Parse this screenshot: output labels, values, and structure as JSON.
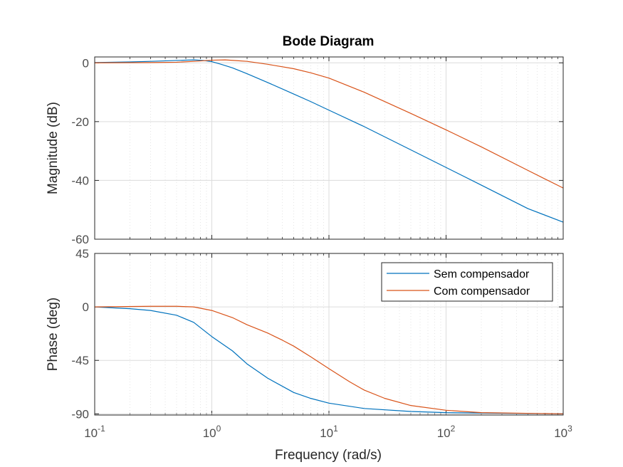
{
  "chart_data": {
    "type": "line",
    "title": "Bode Diagram",
    "xlabel": "Frequency  (rad/s)",
    "x_scale": "log",
    "xlim": [
      0.1,
      1000
    ],
    "x_ticks": [
      {
        "value": 0.1,
        "base": "10",
        "exp": "-1"
      },
      {
        "value": 1,
        "base": "10",
        "exp": "0"
      },
      {
        "value": 10,
        "base": "10",
        "exp": "1"
      },
      {
        "value": 100,
        "base": "10",
        "exp": "2"
      },
      {
        "value": 1000,
        "base": "10",
        "exp": "3"
      }
    ],
    "grid": true,
    "colors": {
      "sem": "#0072bd",
      "com": "#d95319"
    },
    "legend": {
      "location": "top-right of phase panel",
      "entries": [
        "Sem compensador",
        "Com compensador"
      ]
    },
    "panels": [
      {
        "id": "magnitude",
        "ylabel": "Magnitude (dB)",
        "ylim": [
          -60,
          2
        ],
        "y_ticks": [
          0,
          -20,
          -40,
          -60
        ],
        "series": [
          {
            "name": "Sem compensador",
            "color": "#0072bd",
            "points": [
              [
                0.1,
                0.1
              ],
              [
                0.2,
                0.3
              ],
              [
                0.3,
                0.5
              ],
              [
                0.5,
                0.8
              ],
              [
                0.7,
                1.0
              ],
              [
                0.85,
                0.8
              ],
              [
                1,
                0.4
              ],
              [
                1.2,
                -0.5
              ],
              [
                1.5,
                -1.7
              ],
              [
                2,
                -3.7
              ],
              [
                3,
                -6.7
              ],
              [
                5,
                -10.6
              ],
              [
                7,
                -13.2
              ],
              [
                10,
                -16.1
              ],
              [
                20,
                -21.7
              ],
              [
                50,
                -29.6
              ],
              [
                100,
                -35.6
              ],
              [
                200,
                -41.6
              ],
              [
                500,
                -49.6
              ],
              [
                1000,
                -54.2
              ]
            ]
          },
          {
            "name": "Com compensador",
            "color": "#d95319",
            "points": [
              [
                0.1,
                0.0
              ],
              [
                0.3,
                0.1
              ],
              [
                0.5,
                0.2
              ],
              [
                0.7,
                0.5
              ],
              [
                1,
                0.9
              ],
              [
                1.3,
                1.0
              ],
              [
                1.7,
                0.7
              ],
              [
                2,
                0.5
              ],
              [
                3,
                -0.5
              ],
              [
                5,
                -2.0
              ],
              [
                7,
                -3.4
              ],
              [
                10,
                -5.2
              ],
              [
                20,
                -10.0
              ],
              [
                50,
                -17.2
              ],
              [
                100,
                -22.8
              ],
              [
                200,
                -28.6
              ],
              [
                500,
                -36.6
              ],
              [
                1000,
                -42.6
              ]
            ]
          }
        ]
      },
      {
        "id": "phase",
        "ylabel": "Phase (deg)",
        "ylim": [
          -91,
          45
        ],
        "y_ticks": [
          45,
          0,
          -45,
          -90
        ],
        "series": [
          {
            "name": "Sem compensador",
            "color": "#0072bd",
            "points": [
              [
                0.1,
                0
              ],
              [
                0.2,
                -1.5
              ],
              [
                0.3,
                -3
              ],
              [
                0.5,
                -7
              ],
              [
                0.7,
                -13
              ],
              [
                1,
                -25
              ],
              [
                1.5,
                -37
              ],
              [
                2,
                -48
              ],
              [
                3,
                -60
              ],
              [
                5,
                -72
              ],
              [
                7,
                -77
              ],
              [
                10,
                -81
              ],
              [
                20,
                -85.5
              ],
              [
                50,
                -88
              ],
              [
                100,
                -89
              ],
              [
                1000,
                -90
              ]
            ]
          },
          {
            "name": "Com compensador",
            "color": "#d95319",
            "points": [
              [
                0.1,
                0
              ],
              [
                0.3,
                0.5
              ],
              [
                0.5,
                0.5
              ],
              [
                0.7,
                0
              ],
              [
                1,
                -3
              ],
              [
                1.5,
                -9
              ],
              [
                2,
                -15
              ],
              [
                3,
                -22
              ],
              [
                4,
                -28
              ],
              [
                5,
                -33
              ],
              [
                7,
                -42
              ],
              [
                10,
                -52
              ],
              [
                15,
                -63
              ],
              [
                20,
                -70
              ],
              [
                30,
                -77
              ],
              [
                50,
                -83
              ],
              [
                100,
                -87
              ],
              [
                200,
                -89
              ],
              [
                1000,
                -90
              ]
            ]
          }
        ]
      }
    ]
  }
}
